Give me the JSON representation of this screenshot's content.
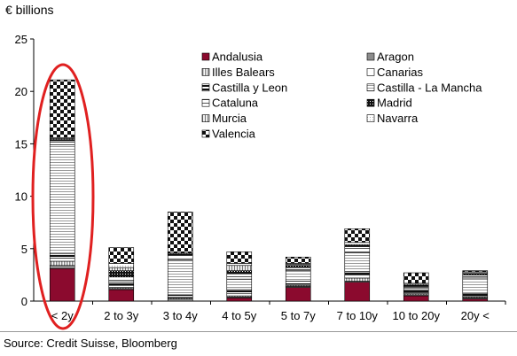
{
  "chart_data": {
    "type": "bar",
    "stacked": true,
    "ylabel": "€ billions",
    "ylim": [
      0,
      25
    ],
    "yticks": [
      0,
      5,
      10,
      15,
      20,
      25
    ],
    "categories": [
      "< 2y",
      "2 to 3y",
      "3 to 4y",
      "4 to 5y",
      "5  to 7y",
      "7  to 10y",
      "10  to 20y",
      "20y <"
    ],
    "series": [
      {
        "name": "Andalusia",
        "values": [
          3.1,
          1.1,
          0.0,
          0.3,
          1.3,
          1.8,
          0.5,
          0.2
        ],
        "color": "#8b0a2e",
        "pattern": "solid"
      },
      {
        "name": "Aragon",
        "values": [
          0.3,
          0.1,
          0.2,
          0.1,
          0.1,
          0.1,
          0.1,
          0.1
        ],
        "color": "#8c8c8c",
        "pattern": "solid-grey"
      },
      {
        "name": "Illes Balears",
        "values": [
          0.4,
          0.1,
          0.1,
          0.1,
          0.1,
          0.3,
          0.1,
          0.1
        ],
        "color": "#aaaaaa",
        "pattern": "vstripes"
      },
      {
        "name": "Canarias",
        "values": [
          0.3,
          0.2,
          0.1,
          0.2,
          0.1,
          0.3,
          0.1,
          0.1
        ],
        "color": "#ffffff",
        "pattern": "white"
      },
      {
        "name": "Castilla y Leon",
        "values": [
          0.4,
          0.3,
          0.2,
          0.4,
          0.3,
          0.3,
          0.2,
          0.2
        ],
        "color": "#ffffff",
        "pattern": "bars"
      },
      {
        "name": "Castilla - La Mancha",
        "values": [
          10.4,
          0.2,
          3.3,
          1.0,
          1.0,
          1.8,
          0.2,
          1.5
        ],
        "color": "#c8c8c8",
        "pattern": "hstripes"
      },
      {
        "name": "Cataluna",
        "values": [
          0.4,
          0.3,
          0.5,
          0.5,
          0.3,
          0.6,
          0.2,
          0.3
        ],
        "color": "#ffffff",
        "pattern": "hlines"
      },
      {
        "name": "Madrid",
        "values": [
          0.1,
          0.6,
          0.1,
          0.3,
          0.2,
          0.1,
          0.1,
          0.1
        ],
        "color": "#222222",
        "pattern": "dark"
      },
      {
        "name": "Murcia",
        "values": [
          0.1,
          0.3,
          0.1,
          0.5,
          0.1,
          0.1,
          0.1,
          0.1
        ],
        "color": "#999999",
        "pattern": "vlines"
      },
      {
        "name": "Navarra",
        "values": [
          0.1,
          0.4,
          0.0,
          0.2,
          0.1,
          0.2,
          0.1,
          0.1
        ],
        "color": "#ffffff",
        "pattern": "white-dots"
      },
      {
        "name": "Valencia",
        "values": [
          5.5,
          1.5,
          3.9,
          1.1,
          0.6,
          1.3,
          1.0,
          0.1
        ],
        "color": "#333333",
        "pattern": "checker"
      }
    ],
    "legend": "top-right",
    "grid": false
  },
  "source": "Source: Credit Suisse, Bloomberg"
}
